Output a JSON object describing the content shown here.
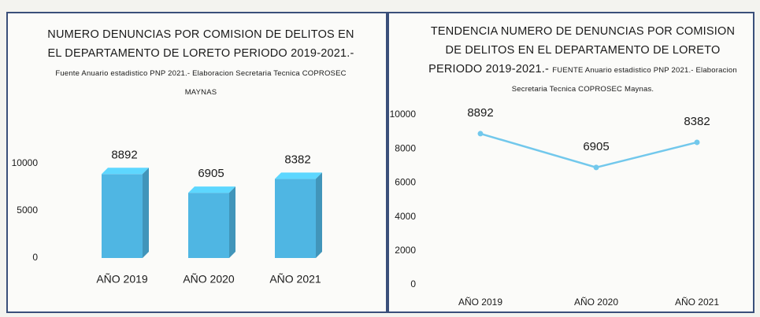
{
  "chart_data": [
    {
      "type": "bar",
      "title": "NUMERO DENUNCIAS POR COMISION DE DELITOS EN EL DEPARTAMENTO DE LORETO PERIODO 2019-2021.-",
      "subtitle": "Fuente Anuario estadistico PNP 2021.- Elaboracion Secretaria Tecnica COPROSEC MAYNAS",
      "categories": [
        "AÑO 2019",
        "AÑO 2020",
        "AÑO 2021"
      ],
      "values": [
        8892,
        6905,
        8382
      ],
      "color": "#4fb6e3",
      "ylim": [
        0,
        10000
      ],
      "yticks": [
        0,
        5000,
        10000
      ],
      "grid": false
    },
    {
      "type": "line",
      "title": "TENDENCIA NUMERO DE DENUNCIAS POR COMISION DE DELITOS EN EL DEPARTAMENTO DE LORETO PERIODO 2019-2021.-",
      "subtitle": "FUENTE Anuario estadistico PNP 2021.- Elaboracion Secretaria Tecnica COPROSEC Maynas.",
      "categories": [
        "AÑO 2019",
        "AÑO 2020",
        "AÑO 2021"
      ],
      "values": [
        8892,
        6905,
        8382
      ],
      "color": "#72c8ec",
      "ylim": [
        0,
        10000
      ],
      "yticks": [
        0,
        2000,
        4000,
        6000,
        8000,
        10000
      ],
      "grid": false
    }
  ]
}
